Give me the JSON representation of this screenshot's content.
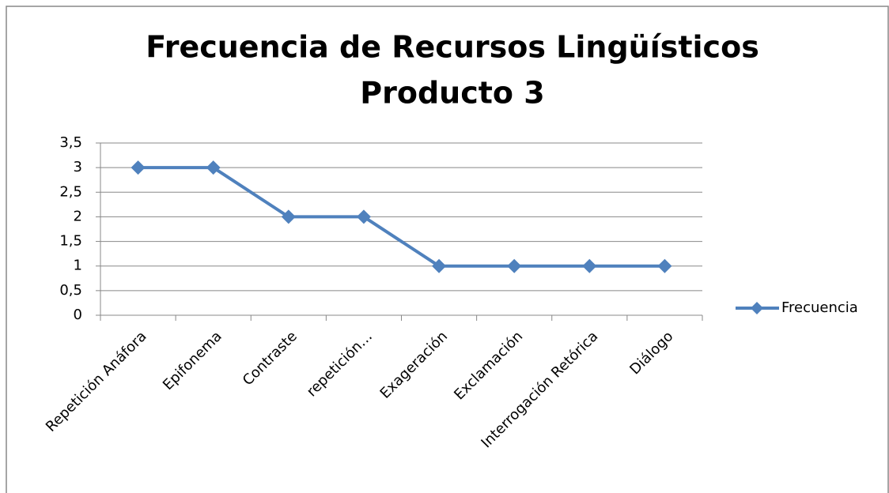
{
  "chart_data": {
    "type": "line",
    "title": [
      "Frecuencia de Recursos Lingüísticos",
      "Producto 3"
    ],
    "categories": [
      "Repetición Anáfora",
      "Epifonema",
      "Contraste",
      "repetición…",
      "Exageración",
      "Exclamación",
      "Interrogación Retórica",
      "Diálogo"
    ],
    "series": [
      {
        "name": "Frecuencia",
        "color": "#4f81bd",
        "values": [
          3,
          3,
          2,
          2,
          1,
          1,
          1,
          1
        ]
      }
    ],
    "ylim": [
      0,
      3.5
    ],
    "yticks": [
      0,
      {
        "value": 0.5,
        "label": "0,5"
      },
      1,
      {
        "value": 1.5,
        "label": "1,5"
      },
      2,
      {
        "value": 2.5,
        "label": "2,5"
      },
      3,
      {
        "value": 3.5,
        "label": "3,5"
      }
    ],
    "grid": true,
    "legend": "right"
  }
}
